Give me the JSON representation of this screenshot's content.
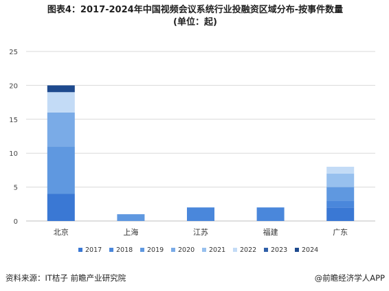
{
  "title_line1": "图表4：2017-2024年中国视频会议系统行业投融资区域分布-按事件数量",
  "title_line2": "(单位：起)",
  "source": "资料来源：IT桔子 前瞻产业研究院",
  "brand": "@前瞻经济学人APP",
  "chart_data": {
    "type": "bar",
    "stacked": true,
    "categories": [
      "北京",
      "上海",
      "江苏",
      "福建",
      "广东"
    ],
    "ylim": [
      0,
      25
    ],
    "yticks": [
      0,
      5,
      10,
      15,
      20,
      25
    ],
    "grid": true,
    "legend_position": "bottom",
    "series": [
      {
        "name": "2017",
        "color": "#3a78d4",
        "values": [
          4,
          0,
          0,
          0,
          2
        ]
      },
      {
        "name": "2018",
        "color": "#4a87db",
        "values": [
          0,
          0,
          2,
          2,
          1
        ]
      },
      {
        "name": "2019",
        "color": "#5f98e0",
        "values": [
          7,
          1,
          0,
          0,
          2
        ]
      },
      {
        "name": "2020",
        "color": "#7aabe7",
        "values": [
          5,
          0,
          0,
          0,
          0
        ]
      },
      {
        "name": "2021",
        "color": "#97c0ee",
        "values": [
          0,
          0,
          0,
          0,
          2
        ]
      },
      {
        "name": "2022",
        "color": "#c3dbf6",
        "values": [
          3,
          0,
          0,
          0,
          1
        ]
      },
      {
        "name": "2023",
        "color": "#2f5fa8",
        "values": [
          0,
          0,
          0,
          0,
          0
        ]
      },
      {
        "name": "2024",
        "color": "#1e4a8e",
        "values": [
          1,
          0,
          0,
          0,
          0
        ]
      }
    ]
  }
}
